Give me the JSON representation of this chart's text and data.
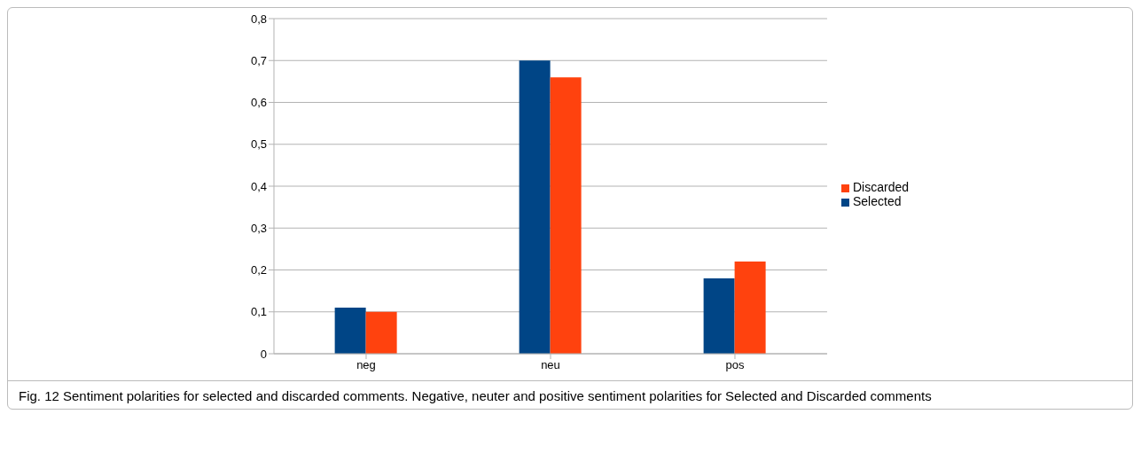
{
  "chart_data": {
    "type": "bar",
    "categories": [
      "neg",
      "neu",
      "pos"
    ],
    "series": [
      {
        "name": "Selected",
        "color": "#004586",
        "values": [
          0.11,
          0.7,
          0.18
        ]
      },
      {
        "name": "Discarded",
        "color": "#ff420e",
        "values": [
          0.1,
          0.66,
          0.22
        ]
      }
    ],
    "ylim": [
      0,
      0.8
    ],
    "yticks": [
      0,
      {
        "value": 0.1,
        "label": "0,1"
      },
      {
        "value": 0.2,
        "label": "0,2"
      },
      {
        "value": 0.3,
        "label": "0,3"
      },
      {
        "value": 0.4,
        "label": "0,4"
      },
      {
        "value": 0.5,
        "label": "0,5"
      },
      {
        "value": 0.6,
        "label": "0,6"
      },
      {
        "value": 0.7,
        "label": "0,7"
      },
      {
        "value": 0.8,
        "label": "0,8"
      }
    ],
    "grid": "y",
    "legend": "right",
    "annotations": [
      "Fig. 12 Sentiment polarities for selected and discarded comments. Negative, neuter and positive sentiment polarities for Selected and Discarded comments"
    ]
  }
}
